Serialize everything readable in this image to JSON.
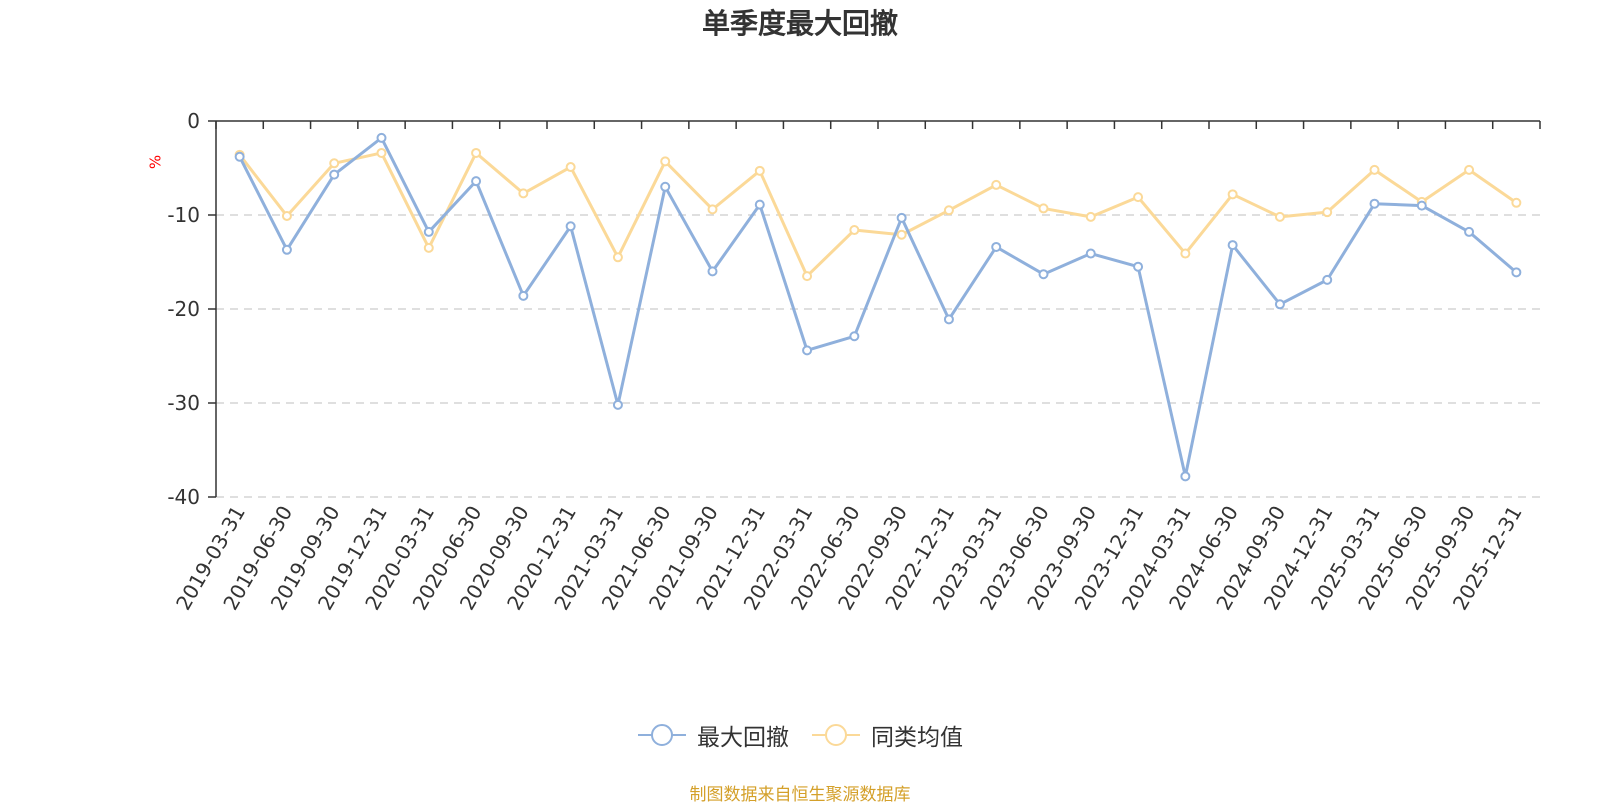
{
  "chart_data": {
    "type": "line",
    "title": "单季度最大回撤",
    "ylabel": "%",
    "xlabel": "",
    "ylim": [
      -40,
      0
    ],
    "yticks": [
      0,
      -10,
      -20,
      -30,
      -40
    ],
    "grid": true,
    "legend_position": "bottom-center",
    "categories": [
      "2019-03-31",
      "2019-06-30",
      "2019-09-30",
      "2019-12-31",
      "2020-03-31",
      "2020-06-30",
      "2020-09-30",
      "2020-12-31",
      "2021-03-31",
      "2021-06-30",
      "2021-09-30",
      "2021-12-31",
      "2022-03-31",
      "2022-06-30",
      "2022-09-30",
      "2022-12-31",
      "2023-03-31",
      "2023-06-30",
      "2023-09-30",
      "2023-12-31",
      "2024-03-31",
      "2024-06-30",
      "2024-09-30",
      "2024-12-31",
      "2025-03-31",
      "2025-06-30",
      "2025-09-30",
      "2025-12-31"
    ],
    "series": [
      {
        "name": "最大回撤",
        "color": "#8fb0dc",
        "values": [
          -3.8,
          -13.7,
          -5.7,
          -1.8,
          -11.8,
          -6.4,
          -18.6,
          -11.2,
          -30.2,
          -7.0,
          -16.0,
          -8.9,
          -24.4,
          -22.9,
          -10.3,
          -21.1,
          -13.4,
          -16.3,
          -14.1,
          -15.5,
          -37.8,
          -13.2,
          -19.5,
          -16.9,
          -8.8,
          -9.0,
          -11.8,
          -16.1
        ]
      },
      {
        "name": "同类均值",
        "color": "#fbd998",
        "values": [
          -3.6,
          -10.1,
          -4.5,
          -3.4,
          -13.5,
          -3.4,
          -7.7,
          -4.9,
          -14.5,
          -4.3,
          -9.4,
          -5.3,
          -16.5,
          -11.6,
          -12.1,
          -9.5,
          -6.8,
          -9.3,
          -10.2,
          -8.1,
          -14.1,
          -7.8,
          -10.2,
          -9.7,
          -5.2,
          -8.6,
          -5.2,
          -8.7
        ]
      }
    ]
  },
  "source_text": "制图数据来自恒生聚源数据库",
  "colors": {
    "title": "#333333",
    "axis": "#333333",
    "grid": "#cccccc",
    "ylabel": "#ff0000",
    "source": "#d4a02a"
  }
}
